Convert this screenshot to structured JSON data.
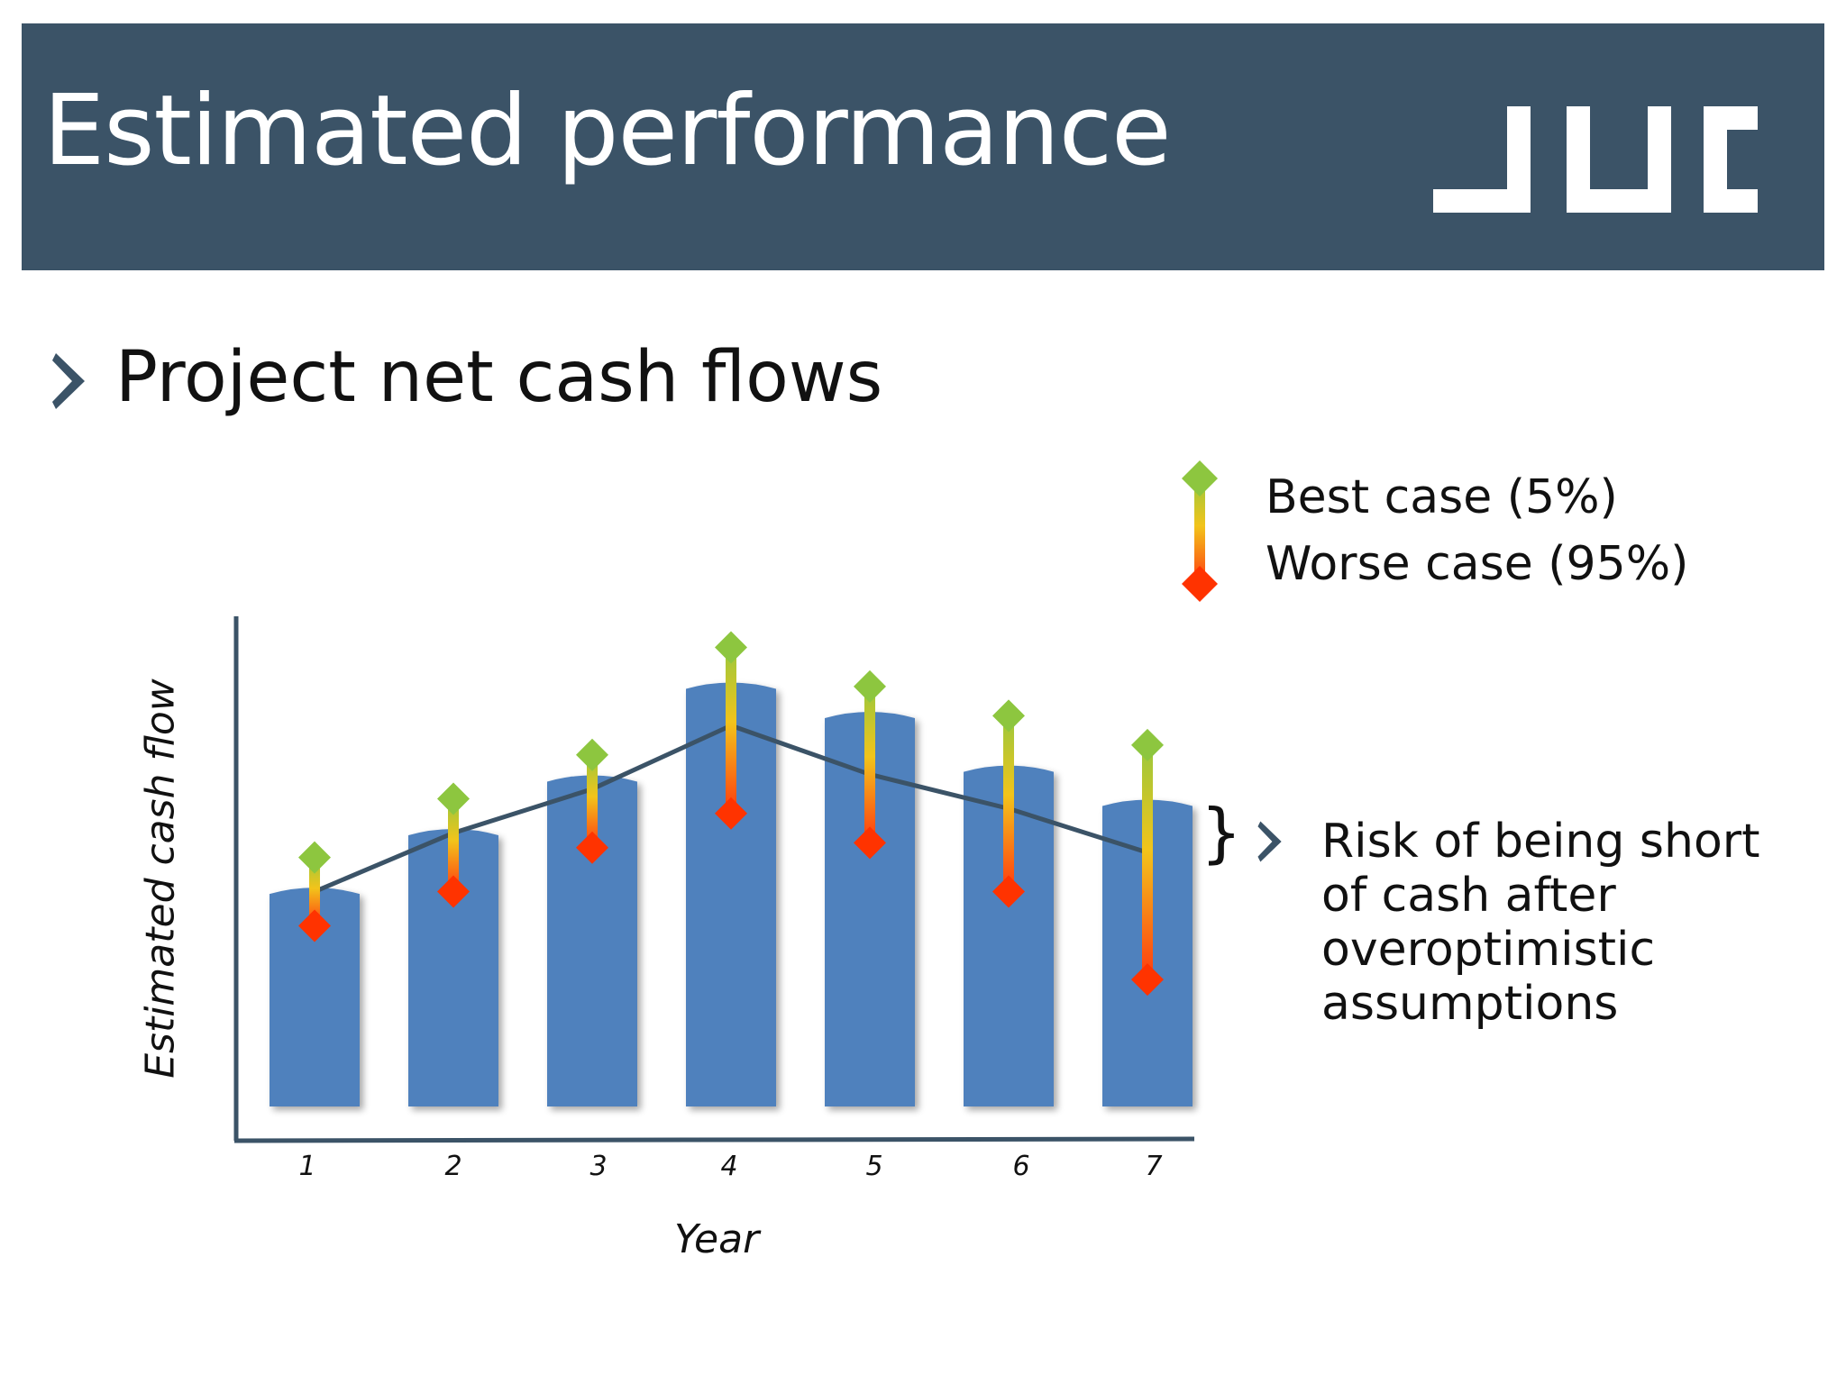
{
  "header": {
    "title": "Estimated performance",
    "logo_text": "JUC",
    "background_color": "#3b5367"
  },
  "section": {
    "bullet_icon": "chevron-right-icon",
    "heading": "Project net cash flows"
  },
  "legend": {
    "best_label": "Best case (5%)",
    "worst_label": "Worse case (95%)",
    "best_color": "#8dc63f",
    "worst_color": "#ff3300"
  },
  "annotation": {
    "brace": "}",
    "text_lines": [
      "Risk of being short",
      "of cash after",
      "overoptimistic",
      "assumptions"
    ]
  },
  "chart_data": {
    "type": "bar",
    "xlabel": "Year",
    "ylabel": "Estimated cash flow",
    "categories": [
      "1",
      "2",
      "3",
      "4",
      "5",
      "6",
      "7"
    ],
    "ylim": [
      0,
      100
    ],
    "series": [
      {
        "values": [
          45,
          57,
          68,
          87,
          81,
          70,
          63
        ],
        "type": "bar",
        "color": "#4f81bd"
      },
      {
        "values": [
          44,
          56,
          65,
          78,
          68,
          61,
          52
        ],
        "type": "line",
        "color": "#3b5367"
      },
      {
        "name": "Best case (5%)",
        "values": [
          51,
          63,
          72,
          94,
          86,
          80,
          74
        ],
        "type": "marker",
        "color": "#8dc63f"
      },
      {
        "name": "Worse case (95%)",
        "values": [
          37,
          44,
          53,
          60,
          54,
          44,
          26
        ],
        "type": "marker",
        "color": "#ff3300"
      }
    ],
    "grid": false,
    "legend": "top-right"
  }
}
